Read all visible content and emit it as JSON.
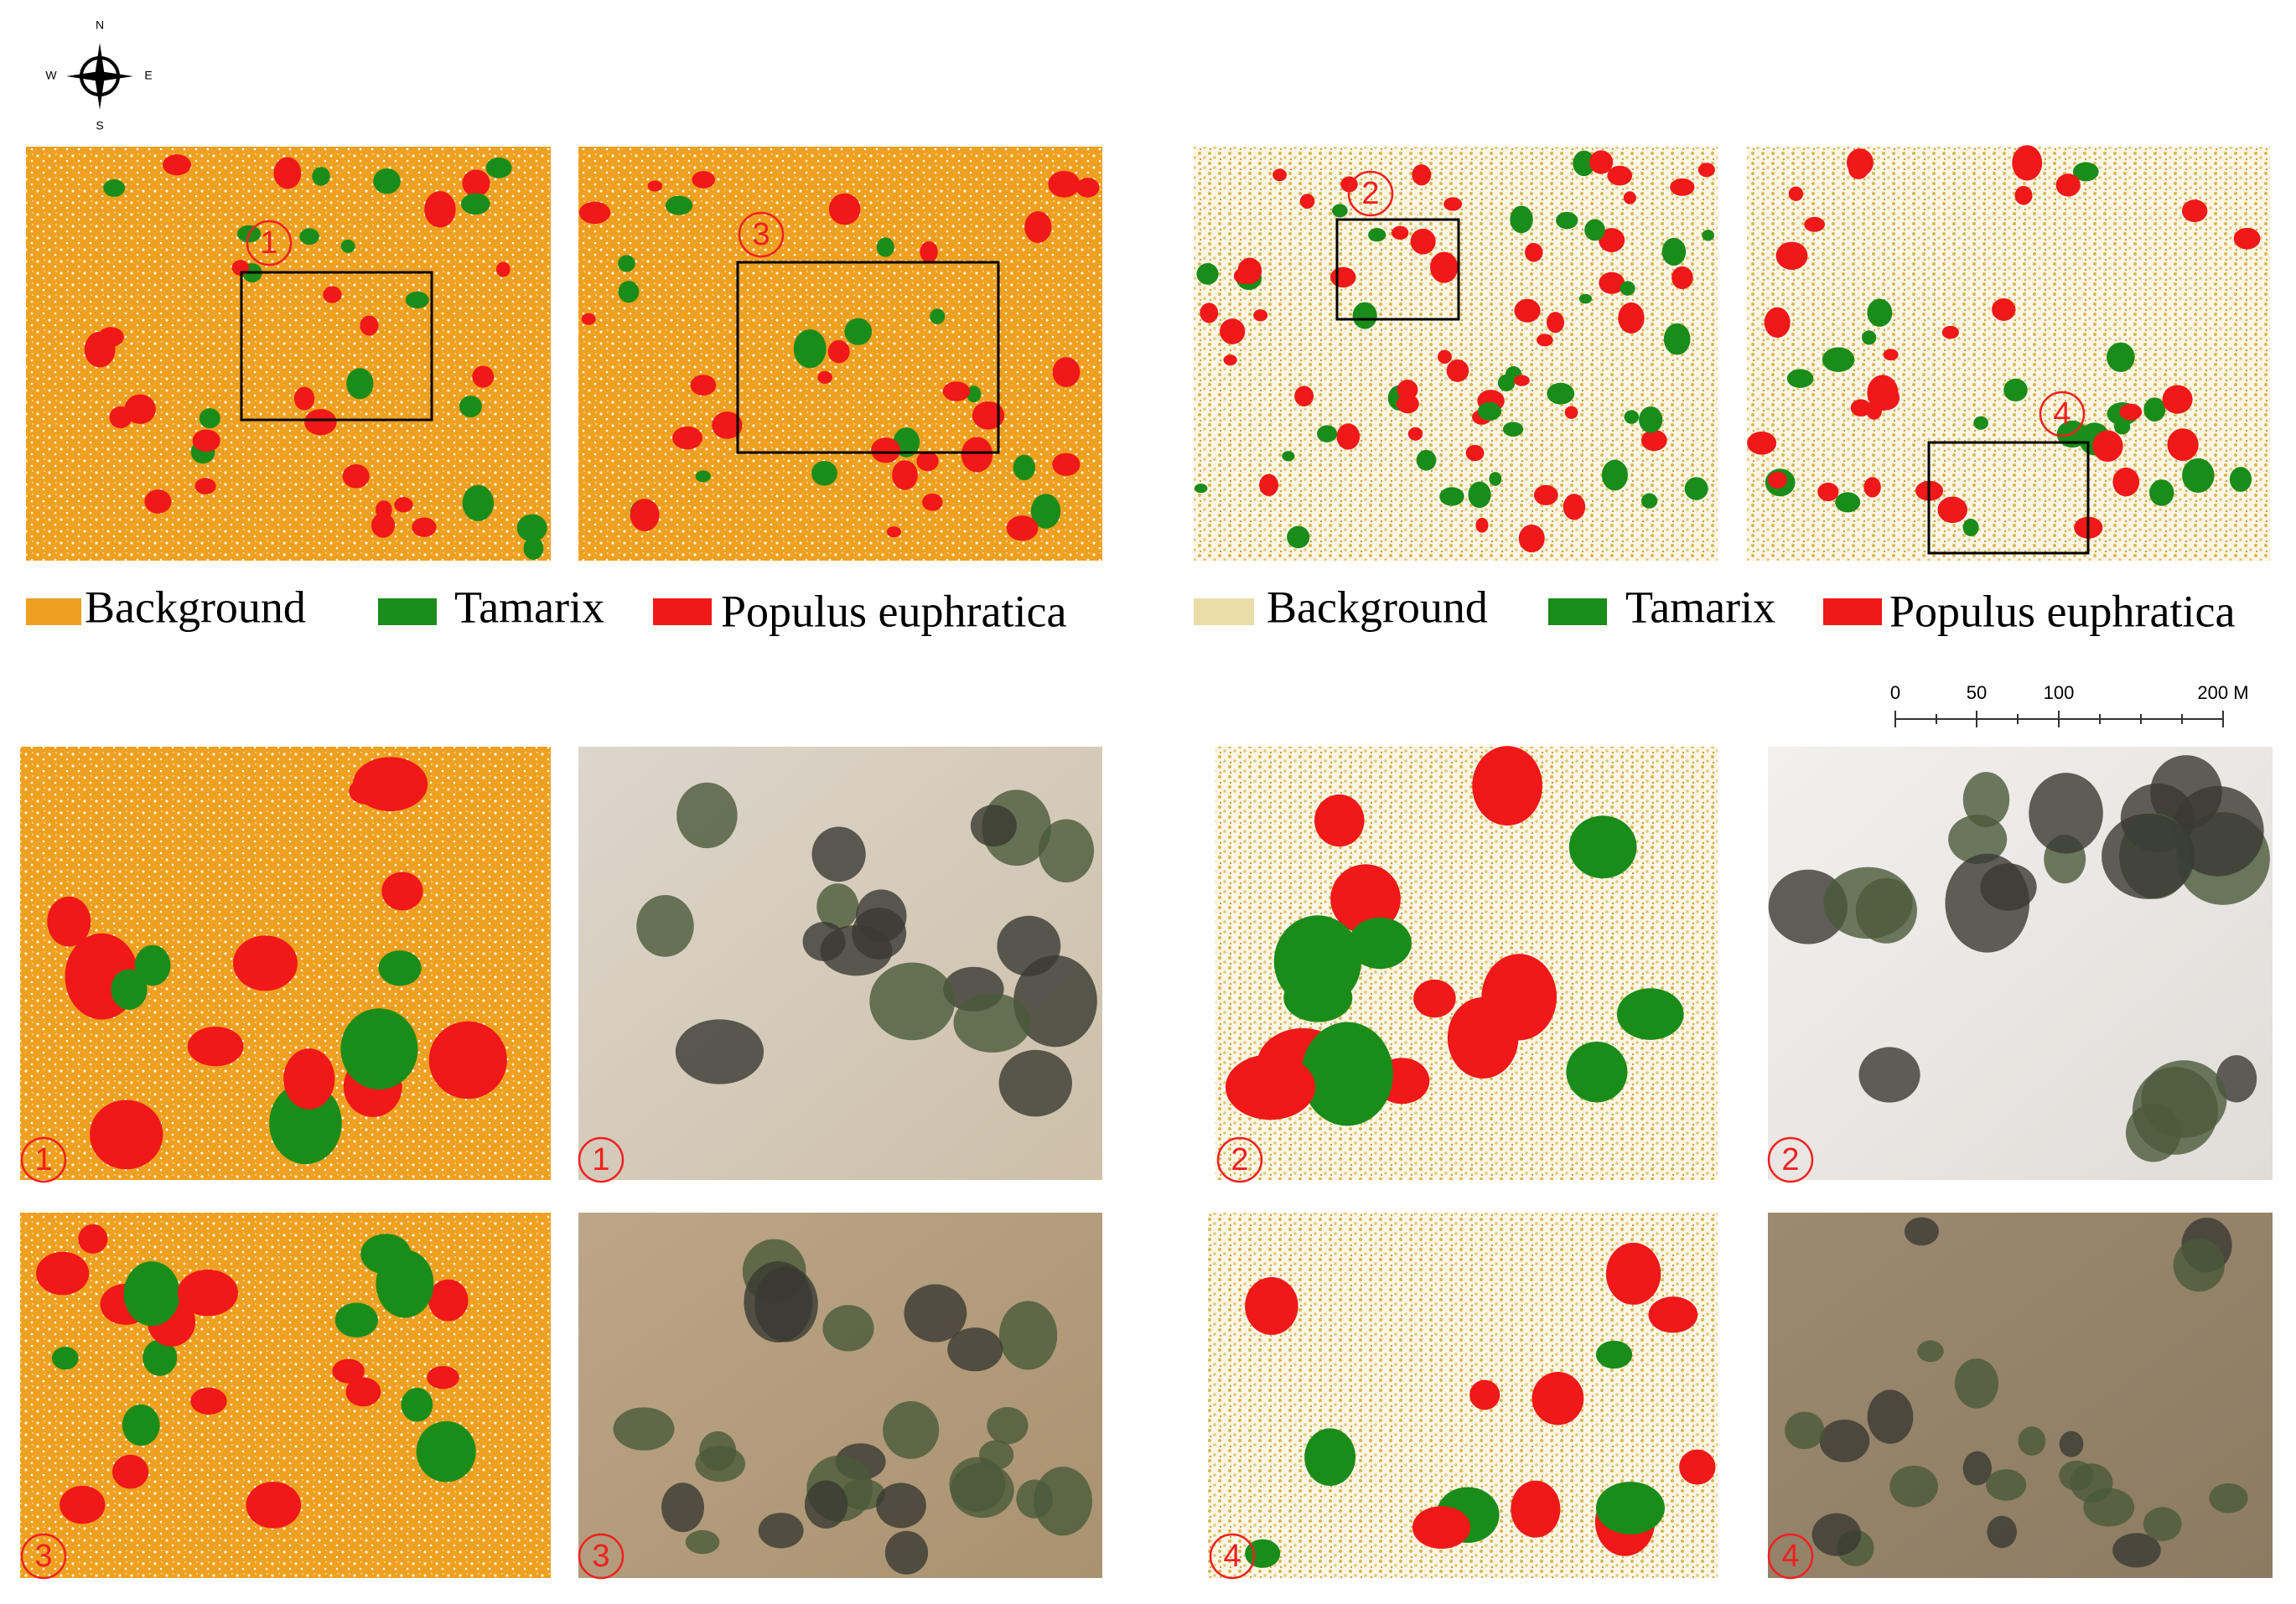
{
  "compass": {
    "n": "N",
    "s": "S",
    "w": "W",
    "e": "E"
  },
  "legends": [
    [
      "Background",
      "Tamarix",
      "Populus euphratica"
    ],
    [
      "Background",
      "Tamarix",
      "Populus euphratica"
    ]
  ],
  "overview_markers": [
    "1",
    "3",
    "2",
    "4"
  ],
  "scale_bar": [
    "0",
    "50",
    "100",
    "200 M"
  ],
  "detail_markers": [
    "1",
    "1",
    "2",
    "2",
    "3",
    "3",
    "4",
    "4"
  ]
}
